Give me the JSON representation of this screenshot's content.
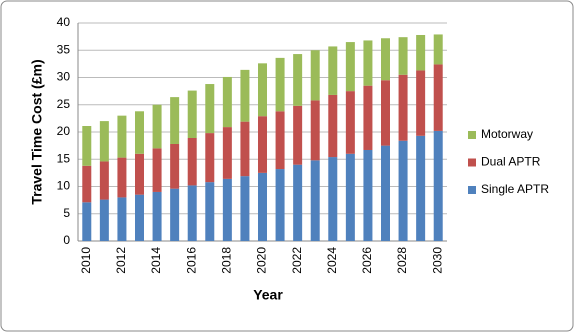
{
  "chart_data": {
    "type": "stacked-bar",
    "x_label": "Year",
    "y_label": "Travel Time Cost (£m)",
    "categories": [
      "2010",
      null,
      "2012",
      null,
      "2014",
      null,
      "2016",
      null,
      "2018",
      null,
      "2020",
      null,
      "2022",
      null,
      "2024",
      null,
      "2026",
      null,
      "2028",
      null,
      "2030"
    ],
    "series": [
      {
        "name": "Single APTR",
        "color": "#4f81bd",
        "values": [
          7.1,
          7.6,
          8.0,
          8.5,
          9.0,
          9.6,
          10.2,
          10.8,
          11.4,
          11.9,
          12.5,
          13.2,
          14.0,
          14.8,
          15.4,
          16.0,
          16.7,
          17.5,
          18.4,
          19.3,
          20.2
        ]
      },
      {
        "name": "Dual APTR",
        "color": "#c0504d",
        "values": [
          6.7,
          7.0,
          7.3,
          7.5,
          8.0,
          8.2,
          8.7,
          9.0,
          9.5,
          10.0,
          10.4,
          10.6,
          10.8,
          11.0,
          11.4,
          11.5,
          11.8,
          12.0,
          12.1,
          12.0,
          12.2
        ]
      },
      {
        "name": "Motorway",
        "color": "#9bbb59",
        "values": [
          7.3,
          7.4,
          7.7,
          7.8,
          8.0,
          8.6,
          8.7,
          9.0,
          9.2,
          9.5,
          9.7,
          9.8,
          9.5,
          9.2,
          8.9,
          9.0,
          8.3,
          7.7,
          6.9,
          6.5,
          5.5
        ]
      }
    ],
    "ylim": [
      0,
      40
    ],
    "yticks": [
      0,
      5,
      10,
      15,
      20,
      25,
      30,
      35,
      40
    ],
    "grid": true,
    "legend": "right"
  }
}
